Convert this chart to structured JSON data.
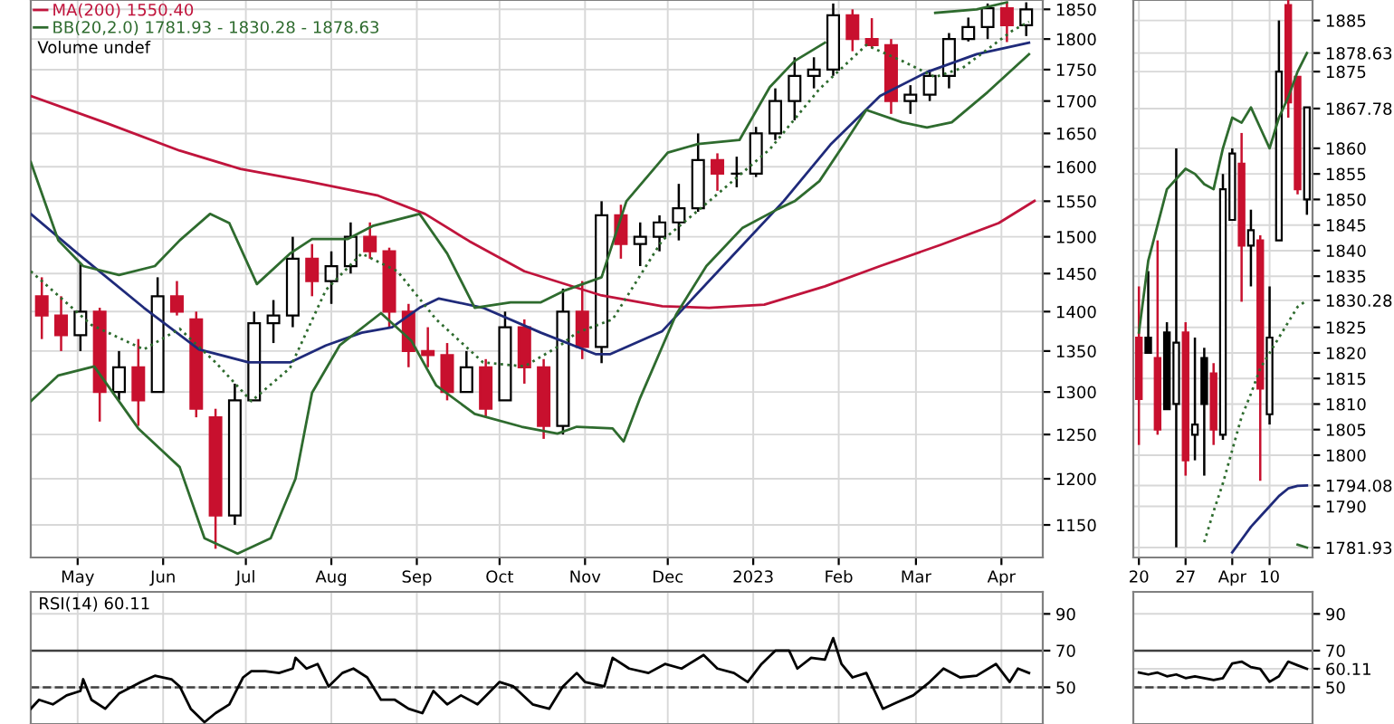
{
  "chart_data": [
    {
      "type": "candlestick",
      "log": "y",
      "grid": true,
      "legend": "top left",
      "xlim": [
        "2022-04-14",
        "2023-04-16"
      ],
      "xticks": [
        {
          "value": "2022-05-01",
          "label": "May"
        },
        {
          "value": "2022-06-01",
          "label": "Jun"
        },
        {
          "value": "2022-07-01",
          "label": "Jul"
        },
        {
          "value": "2022-08-01",
          "label": "Aug"
        },
        {
          "value": "2022-09-01",
          "label": "Sep"
        },
        {
          "value": "2022-10-01",
          "label": "Oct"
        },
        {
          "value": "2022-11-01",
          "label": "Nov"
        },
        {
          "value": "2022-12-01",
          "label": "Dec"
        },
        {
          "value": "2023-01-01",
          "label": "2023"
        },
        {
          "value": "2023-02-01",
          "label": "Feb"
        },
        {
          "value": "2023-03-01",
          "label": "Mar"
        },
        {
          "value": "2023-04-01",
          "label": "Apr"
        }
      ],
      "ylim": [
        1116,
        1866
      ],
      "yticks": [
        1150,
        1200,
        1250,
        1300,
        1350,
        1400,
        1450,
        1500,
        1550,
        1600,
        1650,
        1700,
        1750,
        1800,
        1850
      ],
      "x": [
        "2022-04-18",
        "2022-04-25",
        "2022-05-02",
        "2022-05-09",
        "2022-05-16",
        "2022-05-23",
        "2022-05-30",
        "2022-06-06",
        "2022-06-13",
        "2022-06-20",
        "2022-06-27",
        "2022-07-04",
        "2022-07-11",
        "2022-07-18",
        "2022-07-25",
        "2022-08-01",
        "2022-08-08",
        "2022-08-15",
        "2022-08-22",
        "2022-08-29",
        "2022-09-05",
        "2022-09-12",
        "2022-09-19",
        "2022-09-26",
        "2022-10-03",
        "2022-10-10",
        "2022-10-17",
        "2022-10-24",
        "2022-10-31",
        "2022-11-07",
        "2022-11-14",
        "2022-11-21",
        "2022-11-28",
        "2022-12-05",
        "2022-12-12",
        "2022-12-19",
        "2022-12-26",
        "2023-01-02",
        "2023-01-09",
        "2023-01-16",
        "2023-01-23",
        "2023-01-30",
        "2023-02-06",
        "2023-02-13",
        "2023-02-20",
        "2023-02-27",
        "2023-03-06",
        "2023-03-13",
        "2023-03-20",
        "2023-03-27",
        "2023-04-03",
        "2023-04-10"
      ],
      "ohlc": [
        [
          1420,
          1445,
          1365,
          1395
        ],
        [
          1395,
          1420,
          1350,
          1370
        ],
        [
          1370,
          1465,
          1350,
          1400
        ],
        [
          1400,
          1405,
          1265,
          1300
        ],
        [
          1300,
          1350,
          1290,
          1330
        ],
        [
          1330,
          1365,
          1260,
          1290
        ],
        [
          1300,
          1445,
          1300,
          1420
        ],
        [
          1420,
          1440,
          1395,
          1400
        ],
        [
          1390,
          1400,
          1270,
          1280
        ],
        [
          1270,
          1280,
          1125,
          1160
        ],
        [
          1160,
          1310,
          1150,
          1290
        ],
        [
          1290,
          1400,
          1290,
          1385
        ],
        [
          1385,
          1415,
          1360,
          1395
        ],
        [
          1395,
          1500,
          1380,
          1470
        ],
        [
          1470,
          1490,
          1420,
          1440
        ],
        [
          1440,
          1480,
          1410,
          1460
        ],
        [
          1460,
          1520,
          1450,
          1500
        ],
        [
          1500,
          1520,
          1470,
          1480
        ],
        [
          1480,
          1485,
          1380,
          1400
        ],
        [
          1400,
          1410,
          1330,
          1350
        ],
        [
          1350,
          1380,
          1330,
          1345
        ],
        [
          1345,
          1360,
          1290,
          1300
        ],
        [
          1300,
          1350,
          1300,
          1330
        ],
        [
          1330,
          1340,
          1270,
          1280
        ],
        [
          1290,
          1400,
          1290,
          1380
        ],
        [
          1380,
          1390,
          1310,
          1330
        ],
        [
          1330,
          1340,
          1245,
          1260
        ],
        [
          1260,
          1430,
          1250,
          1400
        ],
        [
          1400,
          1440,
          1340,
          1355
        ],
        [
          1355,
          1550,
          1335,
          1530
        ],
        [
          1530,
          1545,
          1470,
          1490
        ],
        [
          1490,
          1520,
          1460,
          1500
        ],
        [
          1500,
          1530,
          1480,
          1520
        ],
        [
          1520,
          1575,
          1495,
          1540
        ],
        [
          1540,
          1650,
          1535,
          1610
        ],
        [
          1610,
          1620,
          1565,
          1590
        ],
        [
          1590,
          1615,
          1570,
          1590
        ],
        [
          1590,
          1660,
          1585,
          1650
        ],
        [
          1650,
          1720,
          1640,
          1700
        ],
        [
          1700,
          1770,
          1670,
          1740
        ],
        [
          1740,
          1770,
          1720,
          1750
        ],
        [
          1750,
          1860,
          1740,
          1840
        ],
        [
          1840,
          1850,
          1780,
          1800
        ],
        [
          1800,
          1835,
          1785,
          1790
        ],
        [
          1790,
          1800,
          1680,
          1700
        ],
        [
          1700,
          1725,
          1680,
          1710
        ],
        [
          1710,
          1750,
          1700,
          1740
        ],
        [
          1740,
          1810,
          1720,
          1800
        ],
        [
          1800,
          1836,
          1796,
          1820
        ],
        [
          1820,
          1860,
          1800,
          1852
        ],
        [
          1852,
          1863,
          1795,
          1823
        ],
        [
          1823,
          1862,
          1805,
          1850
        ]
      ],
      "colors": [
        "#c8102e",
        "#c8102e",
        "#000000",
        "#c8102e",
        "#000000",
        "#c8102e",
        "#000000",
        "#c8102e",
        "#c8102e",
        "#c8102e",
        "#000000",
        "#000000",
        "#000000",
        "#000000",
        "#c8102e",
        "#000000",
        "#000000",
        "#c8102e",
        "#c8102e",
        "#c8102e",
        "#c8102e",
        "#c8102e",
        "#000000",
        "#c8102e",
        "#000000",
        "#c8102e",
        "#c8102e",
        "#000000",
        "#c8102e",
        "#000000",
        "#c8102e",
        "#000000",
        "#000000",
        "#000000",
        "#000000",
        "#c8102e",
        "#000000",
        "#000000",
        "#000000",
        "#000000",
        "#000000",
        "#000000",
        "#c8102e",
        "#c8102e",
        "#c8102e",
        "#000000",
        "#000000",
        "#000000",
        "#000000",
        "#000000",
        "#c8102e",
        "#000000"
      ],
      "series": [
        {
          "type": "line",
          "name": "MA(200) 1550.40",
          "color": "#c0143c",
          "x": [
            "2022-04-14",
            "2022-05-12",
            "2022-06-07",
            "2022-06-29",
            "2022-07-23",
            "2022-08-18",
            "2022-09-04",
            "2022-09-20",
            "2022-10-10",
            "2022-11-07",
            "2022-11-29",
            "2022-12-16",
            "2023-01-05",
            "2023-01-27",
            "2023-02-16",
            "2023-03-10",
            "2023-03-31",
            "2023-04-13"
          ],
          "values": [
            1708,
            1665,
            1624,
            1597,
            1579,
            1558,
            1532,
            1494,
            1453,
            1421,
            1407,
            1405,
            1409,
            1433,
            1460,
            1489,
            1519,
            1550.4
          ]
        },
        {
          "type": "line",
          "color": "#1f2a7a",
          "x": [
            "2022-04-14",
            "2022-05-01",
            "2022-05-25",
            "2022-06-14",
            "2022-07-02",
            "2022-07-17",
            "2022-07-30",
            "2022-08-12",
            "2022-08-23",
            "2022-09-02",
            "2022-09-09",
            "2022-09-25",
            "2022-10-16",
            "2022-11-05",
            "2022-11-10",
            "2022-11-29",
            "2022-12-21",
            "2023-01-12",
            "2023-01-29",
            "2023-02-16",
            "2023-03-05",
            "2023-03-23",
            "2023-04-11"
          ],
          "values": [
            1532,
            1477,
            1405,
            1352,
            1336,
            1336,
            1357,
            1373,
            1380,
            1405,
            1417,
            1405,
            1373,
            1346,
            1346,
            1375,
            1460,
            1550,
            1633,
            1708,
            1746,
            1775,
            1794.08
          ]
        },
        {
          "type": "line",
          "name": "BB(20,2.0) 1781.93 - 1830.28 - 1878.63",
          "color": "#2e6b2e",
          "x": [
            "2022-04-14",
            "2022-04-24",
            "2022-05-03",
            "2022-05-16",
            "2022-05-29",
            "2022-06-07",
            "2022-06-18",
            "2022-06-25",
            "2022-07-05",
            "2022-07-17",
            "2022-07-25",
            "2022-08-07",
            "2022-08-16",
            "2022-09-02",
            "2022-09-12",
            "2022-09-22",
            "2022-10-05",
            "2022-10-16",
            "2022-10-25",
            "2022-11-07",
            "2022-11-16",
            "2022-12-01",
            "2022-12-12",
            "2022-12-27",
            "2023-01-07",
            "2023-01-16",
            "2023-01-27",
            "2023-01-30",
            "2023-02-10",
            "2023-03-08",
            "2023-03-23",
            "2023-04-03"
          ],
          "values": [
            1607,
            1495,
            1460,
            1448,
            1460,
            1495,
            1532,
            1519,
            1436,
            1477,
            1497,
            1497,
            1515,
            1532,
            1477,
            1405,
            1412,
            1412,
            1428,
            1445,
            1550,
            1621,
            1634,
            1640,
            1722,
            1764,
            1794,
            null,
            null,
            1844,
            1850,
            1862
          ]
        },
        {
          "type": "line",
          "color": "#2e6b2e",
          "x": [
            "2022-04-14",
            "2022-04-24",
            "2022-05-07",
            "2022-05-23",
            "2022-06-07",
            "2022-06-16",
            "2022-06-28",
            "2022-07-10",
            "2022-07-19",
            "2022-07-25",
            "2022-08-04",
            "2022-08-19",
            "2022-08-30",
            "2022-09-08",
            "2022-09-22",
            "2022-10-09",
            "2022-10-22",
            "2022-10-29",
            "2022-11-11",
            "2022-11-15",
            "2022-11-21",
            "2022-12-04",
            "2022-12-15",
            "2022-12-28",
            "2023-01-10",
            "2023-01-16",
            "2023-01-25",
            "2023-02-03",
            "2023-02-11",
            "2023-02-24",
            "2023-03-05",
            "2023-03-14",
            "2023-03-27",
            "2023-04-11"
          ],
          "values": [
            1289,
            1320,
            1331,
            1257,
            1213,
            1136,
            1120,
            1136,
            1200,
            1299,
            1357,
            1398,
            1363,
            1308,
            1274,
            1259,
            1251,
            1259,
            1257,
            1242,
            1293,
            1396,
            1460,
            1512,
            1539,
            1550,
            1579,
            1634,
            1686,
            1667,
            1659,
            1667,
            1714,
            1775
          ]
        },
        {
          "type": "line",
          "color": "#2e6b2e",
          "line_style": "dotted",
          "x": [
            "2022-04-14",
            "2022-05-06",
            "2022-05-25",
            "2022-06-07",
            "2022-06-20",
            "2022-07-03",
            "2022-07-17",
            "2022-07-30",
            "2022-08-12",
            "2022-08-25",
            "2022-09-08",
            "2022-09-25",
            "2022-10-10",
            "2022-10-23",
            "2022-10-29",
            "2022-11-11",
            "2022-11-29",
            "2022-12-16",
            "2023-01-07",
            "2023-01-25",
            "2023-02-11",
            "2023-02-24",
            "2023-03-08",
            "2023-03-18",
            "2023-04-05",
            "2023-04-11"
          ],
          "values": [
            1453,
            1383,
            1352,
            1378,
            1336,
            1289,
            1329,
            1428,
            1477,
            1453,
            1390,
            1336,
            1331,
            1357,
            1373,
            1390,
            1495,
            1550,
            1626,
            1719,
            1790,
            1764,
            1738,
            1753,
            1814,
            1829
          ]
        }
      ],
      "annotations": [
        "Volume undef"
      ]
    },
    {
      "type": "candlestick",
      "grid": true,
      "categories": [
        "20",
        null,
        null,
        null,
        null,
        "27",
        null,
        null,
        null,
        null,
        "Apr",
        null,
        null,
        null,
        "10",
        null,
        null,
        null,
        null
      ],
      "ylim": [
        1780,
        1889
      ],
      "yticks": [
        {
          "value": 1781.93,
          "label": "1781.93"
        },
        1790,
        {
          "value": 1794.08,
          "label": "1794.08"
        },
        1800,
        1805,
        1810,
        1815,
        1820,
        1825,
        {
          "value": 1830.28,
          "label": "1830.28"
        },
        1835,
        1840,
        1845,
        1850,
        1855,
        1860,
        {
          "value": 1867.78,
          "label": "1867.78"
        },
        1875,
        {
          "value": 1878.63,
          "label": "1878.63"
        },
        1885
      ],
      "ohlc": [
        [
          1823,
          1833,
          1802,
          1811
        ],
        [
          1823,
          1836,
          1820,
          1820
        ],
        [
          1819,
          1842,
          1804,
          1805
        ],
        [
          1824,
          1826,
          1809,
          1809
        ],
        [
          1810,
          1860,
          1782,
          1822
        ],
        [
          1824,
          1826,
          1796,
          1799
        ],
        [
          1804,
          1823,
          1799,
          1806
        ],
        [
          1819,
          1821,
          1796,
          1810
        ],
        [
          1816,
          1818,
          1802,
          1805
        ],
        [
          1804,
          1855,
          1803,
          1852
        ],
        [
          1846,
          1860,
          1846,
          1859
        ],
        [
          1857,
          1863,
          1830,
          1841
        ],
        [
          1841,
          1848,
          1833,
          1844
        ],
        [
          1842,
          1843,
          1795,
          1813
        ],
        [
          1808,
          1833,
          1806,
          1823
        ],
        [
          1842,
          1885,
          1842,
          1875
        ],
        [
          1888,
          1889,
          1866,
          1869
        ],
        [
          1874,
          1874,
          1851,
          1852
        ],
        [
          1850,
          1868,
          1847,
          1868
        ]
      ],
      "colors": [
        "#c8102e",
        "#000000",
        "#c8102e",
        "#000000",
        "#000000",
        "#c8102e",
        "#000000",
        "#000000",
        "#c8102e",
        "#000000",
        "#000000",
        "#c8102e",
        "#000000",
        "#c8102e",
        "#000000",
        "#000000",
        "#c8102e",
        "#c8102e",
        "#000000"
      ],
      "series": [
        {
          "type": "line",
          "color": "#2e6b2e",
          "values": [
            1824,
            1838,
            1845,
            1852,
            1854,
            1856,
            1855,
            1853,
            1852,
            1860,
            1866,
            1865,
            1868,
            1864,
            1860,
            1866,
            1870,
            1875,
            1878.63
          ]
        },
        {
          "type": "line",
          "color": "#2e6b2e",
          "line_style": "dotted",
          "values": [
            null,
            null,
            null,
            null,
            null,
            null,
            null,
            1783,
            1789,
            1794.5,
            1801,
            1807.5,
            1812,
            1817,
            1820,
            1823,
            1826,
            1829,
            1830.28
          ]
        },
        {
          "type": "line",
          "color": "#1f2a7a",
          "values": [
            null,
            null,
            null,
            null,
            null,
            null,
            null,
            null,
            null,
            null,
            1781,
            1783.5,
            1786,
            1788,
            1790,
            1792,
            1793.5,
            1794,
            1794.08
          ]
        },
        {
          "type": "line",
          "color": "#2e6b2e",
          "values": [
            null,
            null,
            null,
            null,
            null,
            null,
            null,
            null,
            null,
            null,
            null,
            null,
            null,
            null,
            null,
            null,
            null,
            1782.5,
            1781.93
          ]
        }
      ]
    },
    {
      "type": "line",
      "grid": true,
      "tick_labels": "y",
      "xlim": [
        "2022-04-14",
        "2023-04-16"
      ],
      "xticks": [
        {
          "value": "2022-05-01",
          "label": null
        },
        {
          "value": "2022-06-01",
          "label": null
        },
        {
          "value": "2022-07-01",
          "label": null
        },
        {
          "value": "2022-08-01",
          "label": null
        },
        {
          "value": "2022-09-01",
          "label": null
        },
        {
          "value": "2022-10-01",
          "label": null
        },
        {
          "value": "2022-11-01",
          "label": null
        },
        {
          "value": "2022-12-01",
          "label": null
        },
        {
          "value": "2023-01-01",
          "label": null
        },
        {
          "value": "2023-02-01",
          "label": null
        },
        {
          "value": "2023-03-01",
          "label": null
        },
        {
          "value": "2023-04-01",
          "label": null
        }
      ],
      "ylim": [
        30,
        102
      ],
      "yticks": [
        50,
        70,
        90
      ],
      "ref_lines": [
        {
          "axis": "y",
          "value": 70,
          "color": "#404040"
        },
        {
          "axis": "y",
          "value": 50,
          "color": "#404040",
          "line_style": "dashed"
        }
      ],
      "series": [
        {
          "type": "line",
          "color": "#000000",
          "x": [
            "2022-04-14",
            "2022-04-17",
            "2022-04-22",
            "2022-04-27",
            "2022-05-02",
            "2022-05-03",
            "2022-05-06",
            "2022-05-11",
            "2022-05-16",
            "2022-05-24",
            "2022-05-29",
            "2022-06-04",
            "2022-06-07",
            "2022-06-11",
            "2022-06-16",
            "2022-06-20",
            "2022-06-25",
            "2022-06-30",
            "2022-07-03",
            "2022-07-08",
            "2022-07-13",
            "2022-07-18",
            "2022-07-19",
            "2022-07-23",
            "2022-07-27",
            "2022-07-31",
            "2022-08-05",
            "2022-08-09",
            "2022-08-14",
            "2022-08-19",
            "2022-08-24",
            "2022-08-29",
            "2022-09-03",
            "2022-09-07",
            "2022-09-12",
            "2022-09-17",
            "2022-09-23",
            "2022-10-01",
            "2022-10-06",
            "2022-10-13",
            "2022-10-19",
            "2022-10-24",
            "2022-10-29",
            "2022-11-01",
            "2022-11-08",
            "2022-11-11",
            "2022-11-17",
            "2022-11-24",
            "2022-11-30",
            "2022-12-06",
            "2022-12-14",
            "2022-12-19",
            "2022-12-25",
            "2022-12-30",
            "2023-01-04",
            "2023-01-09",
            "2023-01-14",
            "2023-01-17",
            "2023-01-22",
            "2023-01-27",
            "2023-01-30",
            "2023-02-02",
            "2023-02-06",
            "2023-02-11",
            "2023-02-17",
            "2023-02-22",
            "2023-02-28",
            "2023-03-06",
            "2023-03-11",
            "2023-03-17",
            "2023-03-23",
            "2023-03-30",
            "2023-04-04",
            "2023-04-07",
            "2023-04-11"
          ],
          "values": [
            38.3,
            43.2,
            40.7,
            45.6,
            48,
            54.4,
            43.2,
            38.3,
            46.6,
            52.9,
            56.3,
            54.4,
            50.5,
            38.3,
            31,
            35.9,
            40.7,
            55.4,
            58.8,
            58.8,
            57.8,
            60.2,
            66.1,
            60.2,
            62.7,
            50.5,
            57.8,
            60.2,
            55.4,
            43.2,
            43.2,
            38.3,
            35.9,
            48,
            40.7,
            45.6,
            40.7,
            52.9,
            50.5,
            40.7,
            38.3,
            50.5,
            57.8,
            52.9,
            50.5,
            66.1,
            60.2,
            57.8,
            62.7,
            60.2,
            67.6,
            60.2,
            57.8,
            52.9,
            62.7,
            70,
            70,
            60.2,
            66.1,
            65.1,
            76.8,
            62.7,
            55.4,
            57.8,
            38.3,
            41.7,
            45.6,
            52.9,
            60.2,
            55.4,
            56.3,
            62.7,
            52.9,
            60.2,
            57.8
          ]
        }
      ],
      "annotations": [
        "RSI(14) 60.11"
      ]
    },
    {
      "type": "line",
      "grid": true,
      "tick_labels": "y",
      "categories": [
        null,
        null,
        null,
        null,
        null,
        null,
        null,
        null,
        null,
        null,
        null,
        null,
        null,
        null,
        null,
        null,
        null,
        null,
        null
      ],
      "ylim": [
        30,
        102
      ],
      "yticks": [
        50,
        {
          "value": 60.11,
          "label": "60.11"
        },
        70,
        90
      ],
      "ref_lines": [
        {
          "axis": "y",
          "value": 70,
          "color": "#404040"
        },
        {
          "axis": "y",
          "value": 50,
          "color": "#404040",
          "line_style": "dashed"
        }
      ],
      "series": [
        {
          "type": "line",
          "color": "#000000",
          "values": [
            58,
            57,
            58,
            56,
            57,
            55,
            56,
            55,
            54,
            55,
            63,
            64,
            61,
            60,
            53,
            56,
            64,
            62,
            60.11
          ]
        }
      ]
    }
  ]
}
